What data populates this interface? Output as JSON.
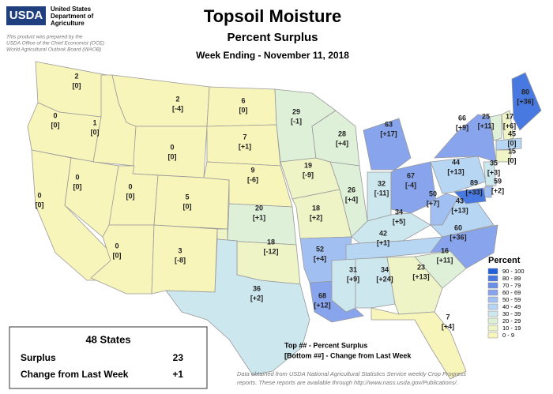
{
  "header": {
    "logo": "USDA",
    "agency": [
      "United States",
      "Department of",
      "Agriculture"
    ],
    "credit": [
      "This product was prepared by the",
      "USDA Office of the Chief Economist (OCE)",
      "World Agricultural Outlook Board (WAOB)"
    ],
    "title": "Topsoil Moisture",
    "subtitle": "Percent Surplus",
    "week": "Week Ending - November 11, 2018"
  },
  "states": [
    {
      "value": 2,
      "change": "[0]"
    },
    {
      "value": 0,
      "change": "[0]"
    },
    {
      "value": 0,
      "change": "[0]"
    },
    {
      "value": 0,
      "change": "[0]"
    },
    {
      "value": 1,
      "change": "[0]"
    },
    {
      "value": 2,
      "change": "[-4]"
    },
    {
      "value": 0,
      "change": "[0]"
    },
    {
      "value": 0,
      "change": "[0]"
    },
    {
      "value": 0,
      "change": "[0]"
    },
    {
      "value": 5,
      "change": "[0]"
    },
    {
      "value": 3,
      "change": "[-8]"
    },
    {
      "value": 6,
      "change": "[0]"
    },
    {
      "value": 7,
      "change": "[+1]"
    },
    {
      "value": 9,
      "change": "[-6]"
    },
    {
      "value": 20,
      "change": "[+1]"
    },
    {
      "value": 18,
      "change": "[-12]"
    },
    {
      "value": 36,
      "change": "[+2]"
    },
    {
      "value": 29,
      "change": "[-1]"
    },
    {
      "value": 19,
      "change": "[-9]"
    },
    {
      "value": 18,
      "change": "[+2]"
    },
    {
      "value": 52,
      "change": "[+4]"
    },
    {
      "value": 68,
      "change": "[+12]"
    },
    {
      "value": 28,
      "change": "[+4]"
    },
    {
      "value": 26,
      "change": "[+4]"
    },
    {
      "value": 63,
      "change": "[+17]"
    },
    {
      "value": 32,
      "change": "[-11]"
    },
    {
      "value": 34,
      "change": "[+5]"
    },
    {
      "value": 42,
      "change": "[+1]"
    },
    {
      "value": 31,
      "change": "[+9]"
    },
    {
      "value": 34,
      "change": "[+24]"
    },
    {
      "value": 67,
      "change": "[-4]"
    },
    {
      "value": 50,
      "change": "[+7]"
    },
    {
      "value": 43,
      "change": "[+13]"
    },
    {
      "value": 60,
      "change": "[+36]"
    },
    {
      "value": 23,
      "change": "[+13]"
    },
    {
      "value": 16,
      "change": "[+11]"
    },
    {
      "value": 7,
      "change": "[+4]"
    },
    {
      "value": 44,
      "change": "[+13]"
    },
    {
      "value": 66,
      "change": "[+9]"
    },
    {
      "value": 80,
      "change": "[+36]"
    },
    {
      "value": 25,
      "change": "[+11]"
    },
    {
      "value": 17,
      "change": "[+6]"
    },
    {
      "value": 45,
      "change": "[0]"
    },
    {
      "value": 15,
      "change": "[0]"
    },
    {
      "value": 35,
      "change": "[+3]"
    },
    {
      "value": 59,
      "change": "[+2]"
    },
    {
      "value": 89,
      "change": "[+33]"
    }
  ],
  "legend": {
    "title": "Percent",
    "items": [
      {
        "label": "90 - 100",
        "color": "#2160d8"
      },
      {
        "label": "80 - 89",
        "color": "#4879e0"
      },
      {
        "label": "70 - 79",
        "color": "#6a8fe6"
      },
      {
        "label": "60 - 69",
        "color": "#87a4ec"
      },
      {
        "label": "50 - 59",
        "color": "#a2bff1"
      },
      {
        "label": "40 - 49",
        "color": "#b6d6f4"
      },
      {
        "label": "30 - 39",
        "color": "#cde7ee"
      },
      {
        "label": "20 - 29",
        "color": "#def0d8"
      },
      {
        "label": "10 - 19",
        "color": "#eef4c6"
      },
      {
        "label": "0 - 9",
        "color": "#f8f5bb"
      }
    ]
  },
  "summary": {
    "title": "48 States",
    "rows": [
      [
        "Surplus",
        "23"
      ],
      [
        "Change from Last Week",
        "+1"
      ]
    ]
  },
  "key": [
    "Top ## - Percent Surplus",
    "[Bottom ##] - Change from Last Week"
  ],
  "footer": [
    "Data obtained from USDA National Agricultural Statistics Service weekly Crop Progress",
    "reports.  These reports are available through http://www.nass.usda.gov/Publications/."
  ]
}
